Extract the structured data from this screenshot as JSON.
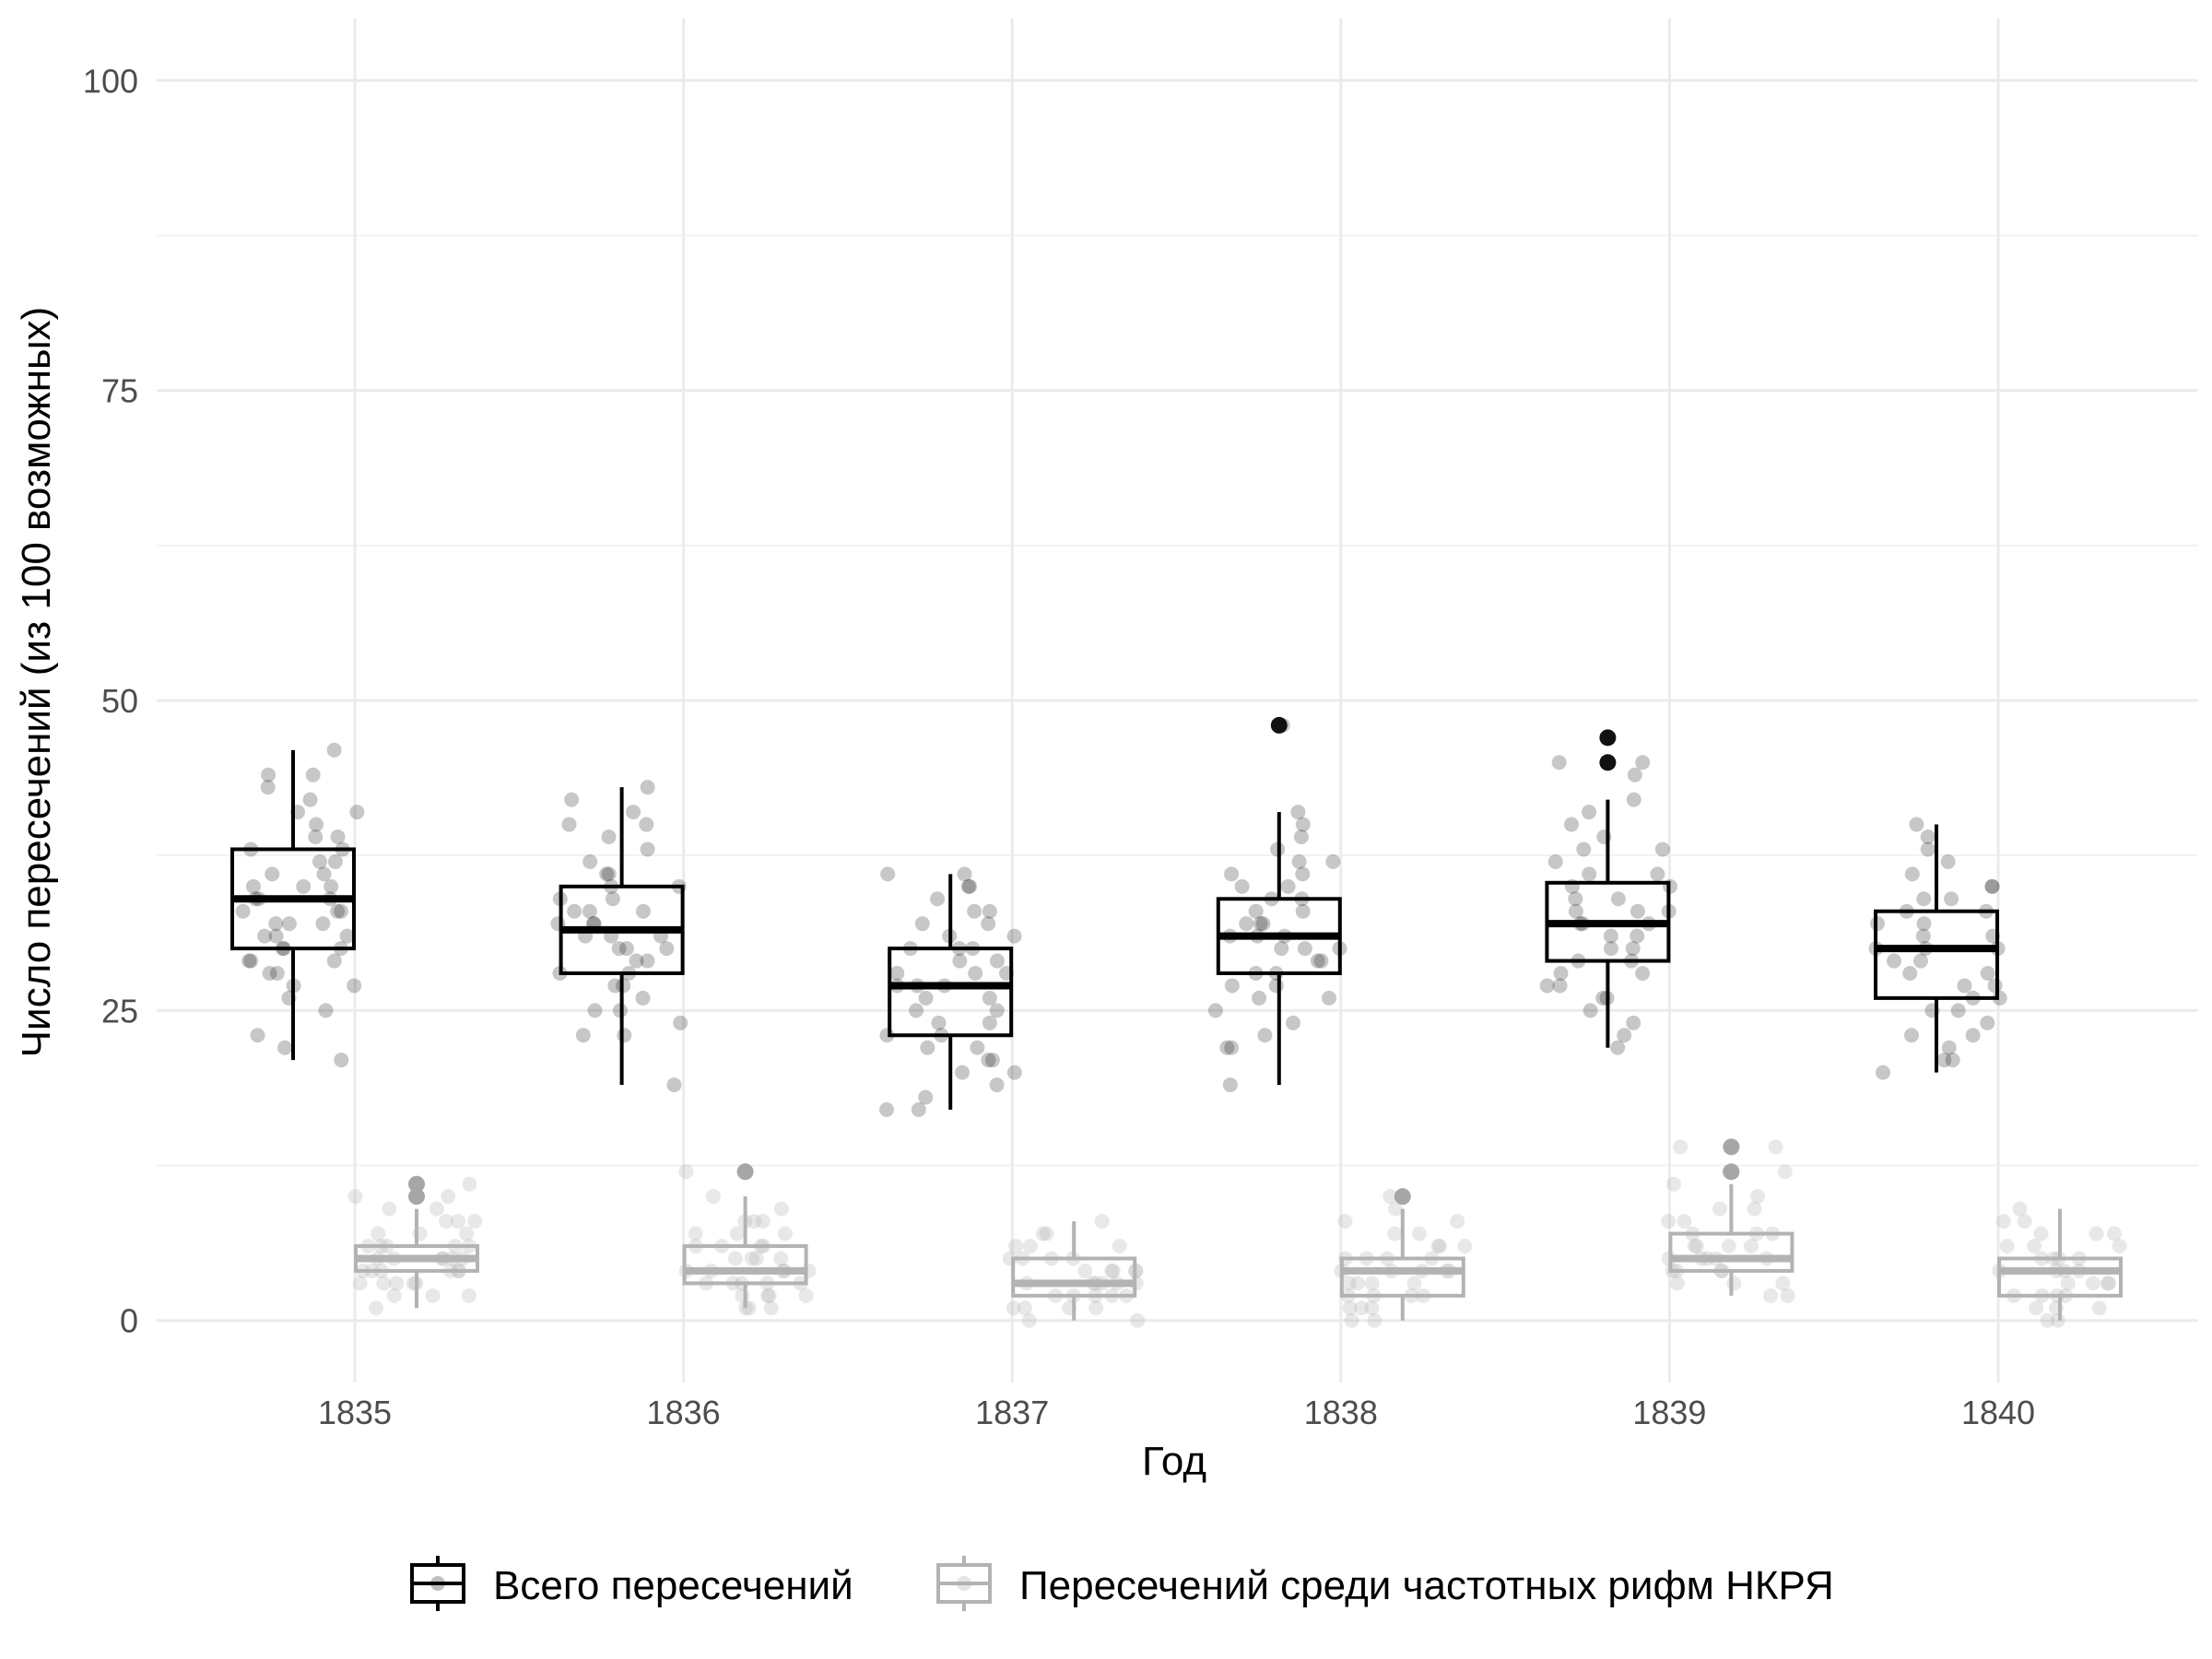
{
  "chart_data": {
    "type": "boxplot",
    "title": "",
    "xlabel": "Год",
    "ylabel": "Число пересечений (из 100 возможных)",
    "categories": [
      "1835",
      "1836",
      "1837",
      "1838",
      "1839",
      "1840"
    ],
    "ylim": [
      -5,
      105
    ],
    "yticks": [
      0,
      25,
      50,
      75,
      100
    ],
    "ytick_labels": [
      "0",
      "25",
      "50",
      "75",
      "100"
    ],
    "grid": true,
    "legend_position": "bottom",
    "series": [
      {
        "name": "Всего пересечений",
        "color": "#000000",
        "point_color": "#000000",
        "boxes": [
          {
            "category": "1835",
            "whisker_low": 21,
            "q1": 30,
            "median": 34,
            "q3": 38,
            "whisker_high": 46,
            "outliers": []
          },
          {
            "category": "1836",
            "whisker_low": 19,
            "q1": 28,
            "median": 31.5,
            "q3": 35,
            "whisker_high": 43,
            "outliers": []
          },
          {
            "category": "1837",
            "whisker_low": 17,
            "q1": 23,
            "median": 27,
            "q3": 30,
            "whisker_high": 36,
            "outliers": []
          },
          {
            "category": "1838",
            "whisker_low": 19,
            "q1": 28,
            "median": 31,
            "q3": 34,
            "whisker_high": 41,
            "outliers": [
              48
            ]
          },
          {
            "category": "1839",
            "whisker_low": 22,
            "q1": 29,
            "median": 32,
            "q3": 35.3,
            "whisker_high": 42,
            "outliers": [
              45,
              47
            ]
          },
          {
            "category": "1840",
            "whisker_low": 20,
            "q1": 26,
            "median": 30,
            "q3": 33,
            "whisker_high": 40,
            "outliers": []
          }
        ],
        "points": [
          [
            44,
            43,
            42,
            41,
            40,
            39,
            38,
            38,
            37,
            37,
            36,
            36,
            35,
            35,
            35,
            34,
            34,
            34,
            33,
            33,
            33,
            32,
            32,
            32,
            31,
            31,
            31,
            30,
            30,
            30,
            29,
            29,
            29,
            28,
            28,
            27,
            27,
            26,
            25,
            23,
            22,
            21,
            46,
            44,
            41,
            39
          ],
          [
            43,
            42,
            41,
            40,
            40,
            39,
            38,
            37,
            36,
            36,
            35,
            35,
            34,
            34,
            33,
            33,
            33,
            32,
            32,
            32,
            31,
            31,
            31,
            30,
            30,
            30,
            29,
            29,
            28,
            28,
            27,
            27,
            26,
            25,
            25,
            24,
            23,
            23,
            19
          ],
          [
            36,
            36,
            35,
            35,
            34,
            33,
            33,
            32,
            32,
            31,
            31,
            30,
            30,
            30,
            29,
            29,
            28,
            28,
            28,
            27,
            27,
            27,
            26,
            26,
            25,
            25,
            24,
            24,
            23,
            23,
            22,
            22,
            21,
            21,
            20,
            20,
            19,
            18,
            17,
            17
          ],
          [
            48,
            41,
            40,
            39,
            38,
            37,
            37,
            36,
            36,
            35,
            35,
            34,
            34,
            33,
            33,
            32,
            32,
            32,
            31,
            31,
            31,
            30,
            30,
            30,
            29,
            29,
            28,
            28,
            27,
            27,
            26,
            26,
            25,
            24,
            23,
            22,
            22,
            19
          ],
          [
            45,
            45,
            44,
            42,
            41,
            40,
            39,
            38,
            38,
            37,
            36,
            36,
            35,
            35,
            34,
            34,
            33,
            33,
            33,
            32,
            32,
            32,
            31,
            31,
            30,
            30,
            29,
            29,
            28,
            28,
            27,
            27,
            26,
            26,
            25,
            24,
            23,
            22
          ],
          [
            40,
            39,
            38,
            37,
            36,
            35,
            35,
            34,
            34,
            33,
            33,
            32,
            32,
            31,
            31,
            30,
            30,
            30,
            29,
            29,
            28,
            28,
            27,
            27,
            26,
            26,
            25,
            25,
            24,
            23,
            23,
            22,
            21,
            21,
            20
          ]
        ]
      },
      {
        "name": "Пересечений среди частотных рифм НКРЯ",
        "color": "#b3b3b3",
        "point_color": "#b3b3b3",
        "boxes": [
          {
            "category": "1835",
            "whisker_low": 1,
            "q1": 4,
            "median": 5,
            "q3": 6,
            "whisker_high": 9,
            "outliers": [
              10,
              11
            ]
          },
          {
            "category": "1836",
            "whisker_low": 1,
            "q1": 3,
            "median": 4,
            "q3": 6,
            "whisker_high": 10,
            "outliers": [
              12
            ]
          },
          {
            "category": "1837",
            "whisker_low": 0,
            "q1": 2,
            "median": 3,
            "q3": 5,
            "whisker_high": 8,
            "outliers": []
          },
          {
            "category": "1838",
            "whisker_low": 0,
            "q1": 2,
            "median": 4,
            "q3": 5,
            "whisker_high": 9,
            "outliers": [
              10
            ]
          },
          {
            "category": "1839",
            "whisker_low": 2,
            "q1": 4,
            "median": 5,
            "q3": 7,
            "whisker_high": 11,
            "outliers": [
              12,
              14
            ]
          },
          {
            "category": "1840",
            "whisker_low": 0,
            "q1": 2,
            "median": 4,
            "q3": 5,
            "whisker_high": 9,
            "outliers": []
          }
        ],
        "points": [
          [
            11,
            10,
            10,
            9,
            9,
            8,
            8,
            8,
            7,
            7,
            7,
            6,
            6,
            6,
            6,
            6,
            5,
            5,
            5,
            5,
            5,
            5,
            4,
            4,
            4,
            4,
            4,
            4,
            3,
            3,
            3,
            3,
            3,
            2,
            2,
            2,
            1
          ],
          [
            12,
            10,
            9,
            8,
            8,
            8,
            7,
            7,
            7,
            6,
            6,
            6,
            6,
            5,
            5,
            5,
            5,
            4,
            4,
            4,
            4,
            4,
            3,
            3,
            3,
            3,
            3,
            2,
            2,
            2,
            2,
            1,
            1,
            1
          ],
          [
            8,
            7,
            7,
            6,
            6,
            6,
            5,
            5,
            5,
            5,
            4,
            4,
            4,
            4,
            4,
            3,
            3,
            3,
            3,
            3,
            3,
            2,
            2,
            2,
            2,
            2,
            1,
            1,
            1,
            1,
            0,
            0
          ],
          [
            10,
            9,
            8,
            8,
            7,
            7,
            6,
            6,
            6,
            5,
            5,
            5,
            5,
            4,
            4,
            4,
            4,
            4,
            3,
            3,
            3,
            3,
            2,
            2,
            2,
            2,
            1,
            1,
            1,
            0,
            0
          ],
          [
            14,
            14,
            12,
            12,
            11,
            10,
            9,
            9,
            8,
            8,
            7,
            7,
            7,
            6,
            6,
            6,
            6,
            5,
            5,
            5,
            5,
            5,
            4,
            4,
            4,
            4,
            3,
            3,
            3,
            2,
            2
          ],
          [
            9,
            8,
            8,
            7,
            7,
            7,
            6,
            6,
            6,
            5,
            5,
            5,
            5,
            4,
            4,
            4,
            4,
            3,
            3,
            3,
            3,
            2,
            2,
            2,
            2,
            1,
            1,
            1,
            0,
            0
          ]
        ]
      }
    ]
  }
}
